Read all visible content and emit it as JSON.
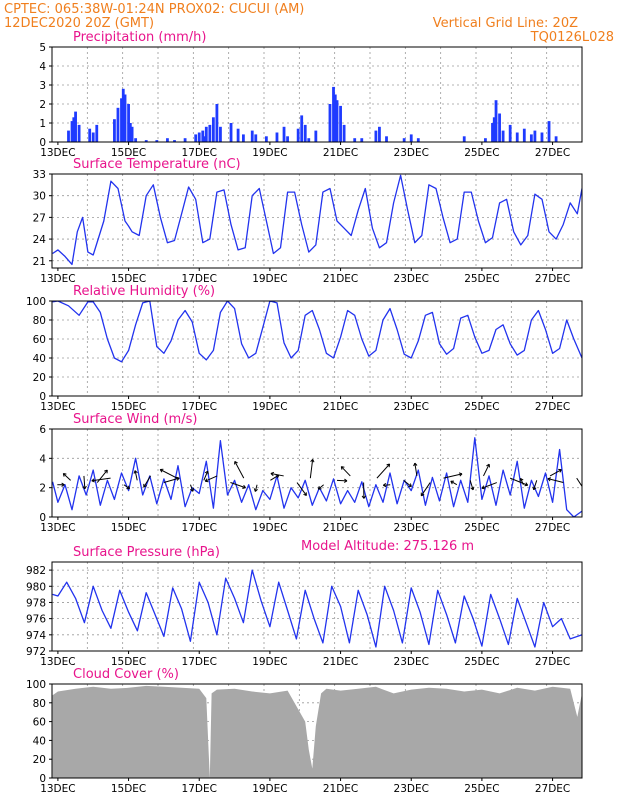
{
  "header": {
    "line1": "CPTEC:   065:38W-01:24N   PROX02: CUCUI (AM)",
    "line2": "12DEC2020 20Z (GMT)",
    "grid_note": "Vertical Grid Line: 20Z",
    "code": "TQ0126L028"
  },
  "colors": {
    "header": "#f07f1e",
    "panel_title": "#e8148c",
    "series": "#2233ee",
    "bars": "#1f3bff",
    "cloud": "#a8a8a8",
    "grid": "#9a9a9a"
  },
  "x_axis": {
    "tick_labels": [
      "13DEC",
      "15DEC",
      "17DEC",
      "19DEC",
      "21DEC",
      "23DEC",
      "25DEC",
      "27DEC"
    ],
    "tick_days": [
      13,
      15,
      17,
      19,
      21,
      23,
      25,
      27
    ],
    "start_day": 12.833,
    "end_day": 27.833,
    "vertical_grid_days": [
      13.833,
      14.833,
      15.833,
      16.833,
      17.833,
      18.833,
      19.833,
      20.833,
      21.833,
      22.833,
      23.833,
      24.833,
      25.833,
      26.833
    ]
  },
  "model_altitude_label": "Model Altitude: 275.126 m",
  "chart_data": [
    {
      "type": "bar",
      "title": "Precipitation (mm/h)",
      "ylim": [
        0,
        5
      ],
      "yticks": [
        0,
        1,
        2,
        3,
        4,
        5
      ],
      "series_color": "#1f3bff",
      "x": [
        13.3,
        13.4,
        13.45,
        13.5,
        13.6,
        13.9,
        14.0,
        14.1,
        14.6,
        14.7,
        14.8,
        14.85,
        14.9,
        15.0,
        15.05,
        15.1,
        15.2,
        15.5,
        15.8,
        16.1,
        16.3,
        16.6,
        16.9,
        17.0,
        17.1,
        17.15,
        17.2,
        17.3,
        17.4,
        17.5,
        17.6,
        17.9,
        18.1,
        18.25,
        18.5,
        18.6,
        18.9,
        19.2,
        19.4,
        19.5,
        19.8,
        19.9,
        20.0,
        20.1,
        20.3,
        20.7,
        20.8,
        20.85,
        20.9,
        21.0,
        21.1,
        21.4,
        21.6,
        22.0,
        22.1,
        22.3,
        22.8,
        23.0,
        23.2,
        24.5,
        25.1,
        25.3,
        25.35,
        25.4,
        25.5,
        25.6,
        25.8,
        26.0,
        26.2,
        26.4,
        26.5,
        26.7,
        26.9,
        27.1
      ],
      "values": [
        0.6,
        1.1,
        1.3,
        1.6,
        0.9,
        0.7,
        0.5,
        0.9,
        1.2,
        1.8,
        2.3,
        2.8,
        2.5,
        2.0,
        1.0,
        0.8,
        0.2,
        0.1,
        0.1,
        0.2,
        0.1,
        0.2,
        0.4,
        0.5,
        0.6,
        0.3,
        0.8,
        0.9,
        1.3,
        2.0,
        0.8,
        1.0,
        0.7,
        0.4,
        0.6,
        0.4,
        0.3,
        0.5,
        0.8,
        0.3,
        0.7,
        1.4,
        0.9,
        0.2,
        0.6,
        2.0,
        2.9,
        2.5,
        2.2,
        1.9,
        0.9,
        0.2,
        0.2,
        0.6,
        0.8,
        0.3,
        0.2,
        0.4,
        0.2,
        0.3,
        0.2,
        1.0,
        1.3,
        2.2,
        1.5,
        0.6,
        0.9,
        0.5,
        0.7,
        0.4,
        0.6,
        0.5,
        1.1,
        0.3
      ]
    },
    {
      "type": "line",
      "title": "Surface Temperature (nC)",
      "ylim": [
        20,
        33
      ],
      "yticks": [
        21,
        24,
        27,
        30,
        33
      ],
      "series_color": "#2233ee",
      "x": [
        12.85,
        13.0,
        13.2,
        13.4,
        13.55,
        13.7,
        13.85,
        14.0,
        14.3,
        14.5,
        14.7,
        14.9,
        15.0,
        15.1,
        15.3,
        15.5,
        15.7,
        15.9,
        16.1,
        16.3,
        16.5,
        16.7,
        16.9,
        17.1,
        17.3,
        17.5,
        17.7,
        17.9,
        18.1,
        18.3,
        18.5,
        18.7,
        18.9,
        19.1,
        19.3,
        19.5,
        19.7,
        19.9,
        20.1,
        20.3,
        20.5,
        20.7,
        20.9,
        21.1,
        21.3,
        21.5,
        21.7,
        21.9,
        22.1,
        22.3,
        22.5,
        22.7,
        22.9,
        23.1,
        23.3,
        23.5,
        23.7,
        23.9,
        24.1,
        24.3,
        24.5,
        24.7,
        24.9,
        25.1,
        25.3,
        25.5,
        25.7,
        25.9,
        26.1,
        26.3,
        26.5,
        26.7,
        26.9,
        27.1,
        27.3,
        27.5,
        27.7,
        27.833
      ],
      "values": [
        22.0,
        22.5,
        21.6,
        20.5,
        25.0,
        27.0,
        22.2,
        21.8,
        26.5,
        32.0,
        31.0,
        26.5,
        25.8,
        25.0,
        24.5,
        30.0,
        31.5,
        27.0,
        23.5,
        23.8,
        27.5,
        31.2,
        29.5,
        23.5,
        24.0,
        30.5,
        30.8,
        26.0,
        22.5,
        22.8,
        30.0,
        31.0,
        26.5,
        22.0,
        22.8,
        30.5,
        30.5,
        26.0,
        22.2,
        23.2,
        30.5,
        31.0,
        26.5,
        25.5,
        24.5,
        28.0,
        31.0,
        25.5,
        22.8,
        23.5,
        29.0,
        32.8,
        28.0,
        23.5,
        24.5,
        31.5,
        31.0,
        27.0,
        23.5,
        24.0,
        30.5,
        30.5,
        26.5,
        23.5,
        24.2,
        29.0,
        29.5,
        25.0,
        23.2,
        24.5,
        30.2,
        29.5,
        25.0,
        24.0,
        26.0,
        29.0,
        27.5,
        31.0
      ]
    },
    {
      "type": "line",
      "title": "Relative Humidity (%)",
      "ylim": [
        0,
        100
      ],
      "yticks": [
        0,
        20,
        40,
        60,
        80,
        100
      ],
      "series_color": "#2233ee",
      "x": [
        12.85,
        13.0,
        13.3,
        13.6,
        13.85,
        14.0,
        14.2,
        14.4,
        14.6,
        14.8,
        15.0,
        15.2,
        15.4,
        15.6,
        15.8,
        16.0,
        16.2,
        16.4,
        16.6,
        16.8,
        17.0,
        17.2,
        17.4,
        17.6,
        17.8,
        18.0,
        18.2,
        18.4,
        18.6,
        18.8,
        19.0,
        19.2,
        19.4,
        19.6,
        19.8,
        20.0,
        20.2,
        20.4,
        20.6,
        20.8,
        21.0,
        21.2,
        21.4,
        21.6,
        21.8,
        22.0,
        22.2,
        22.4,
        22.6,
        22.8,
        23.0,
        23.2,
        23.4,
        23.6,
        23.8,
        24.0,
        24.2,
        24.4,
        24.6,
        24.8,
        25.0,
        25.2,
        25.4,
        25.6,
        25.8,
        26.0,
        26.2,
        26.4,
        26.6,
        26.8,
        27.0,
        27.2,
        27.4,
        27.6,
        27.833
      ],
      "values": [
        99,
        100,
        95,
        85,
        99,
        99,
        88,
        60,
        40,
        36,
        48,
        75,
        98,
        100,
        52,
        45,
        58,
        80,
        90,
        78,
        45,
        38,
        48,
        88,
        100,
        92,
        55,
        40,
        45,
        72,
        100,
        98,
        56,
        40,
        48,
        85,
        90,
        70,
        45,
        40,
        62,
        90,
        85,
        60,
        42,
        48,
        80,
        92,
        70,
        44,
        40,
        58,
        85,
        88,
        55,
        44,
        50,
        82,
        85,
        62,
        45,
        48,
        70,
        75,
        55,
        43,
        48,
        80,
        90,
        70,
        45,
        50,
        80,
        60,
        40
      ]
    },
    {
      "type": "line",
      "title": "Surface Wind (m/s)",
      "ylim": [
        0,
        6
      ],
      "yticks": [
        0,
        2,
        4,
        6
      ],
      "series_color": "#2233ee",
      "x": [
        12.85,
        13.0,
        13.2,
        13.4,
        13.6,
        13.8,
        14.0,
        14.2,
        14.4,
        14.6,
        14.8,
        15.0,
        15.2,
        15.4,
        15.6,
        15.8,
        16.0,
        16.2,
        16.4,
        16.6,
        16.8,
        17.0,
        17.2,
        17.4,
        17.6,
        17.8,
        18.0,
        18.2,
        18.4,
        18.6,
        18.8,
        19.0,
        19.2,
        19.4,
        19.6,
        19.8,
        20.0,
        20.2,
        20.4,
        20.6,
        20.8,
        21.0,
        21.2,
        21.4,
        21.6,
        21.8,
        22.0,
        22.2,
        22.4,
        22.6,
        22.8,
        23.0,
        23.2,
        23.4,
        23.6,
        23.8,
        24.0,
        24.2,
        24.4,
        24.6,
        24.8,
        25.0,
        25.2,
        25.4,
        25.6,
        25.8,
        26.0,
        26.2,
        26.4,
        26.6,
        26.8,
        27.0,
        27.2,
        27.4,
        27.6,
        27.833
      ],
      "values": [
        2.4,
        1.0,
        2.2,
        0.5,
        2.8,
        1.5,
        3.2,
        0.8,
        2.5,
        1.2,
        3.0,
        1.8,
        4.0,
        1.5,
        2.8,
        0.9,
        2.6,
        1.2,
        3.5,
        0.7,
        2.0,
        1.6,
        3.8,
        0.6,
        5.2,
        1.5,
        2.5,
        1.0,
        2.2,
        0.5,
        1.8,
        1.2,
        2.8,
        0.6,
        2.0,
        1.3,
        2.5,
        0.8,
        2.0,
        1.1,
        2.6,
        0.9,
        1.8,
        1.0,
        2.4,
        0.7,
        2.2,
        1.0,
        3.0,
        0.9,
        2.5,
        1.8,
        3.2,
        0.8,
        2.7,
        1.1,
        3.0,
        0.7,
        2.5,
        1.0,
        5.4,
        1.2,
        2.8,
        0.8,
        3.2,
        1.5,
        3.8,
        0.6,
        2.5,
        1.4,
        3.0,
        1.0,
        4.6,
        0.5,
        0.0,
        0.4
      ]
    },
    {
      "type": "line",
      "title": "Surface Pressure (hPa)",
      "ylim": [
        972,
        983
      ],
      "yticks": [
        972,
        974,
        976,
        978,
        980,
        982
      ],
      "series_color": "#2233ee",
      "x": [
        12.85,
        13.0,
        13.25,
        13.5,
        13.75,
        14.0,
        14.25,
        14.5,
        14.75,
        15.0,
        15.25,
        15.5,
        15.75,
        16.0,
        16.25,
        16.5,
        16.75,
        17.0,
        17.25,
        17.5,
        17.75,
        18.0,
        18.25,
        18.5,
        18.75,
        19.0,
        19.25,
        19.5,
        19.75,
        20.0,
        20.25,
        20.5,
        20.75,
        21.0,
        21.25,
        21.5,
        21.75,
        22.0,
        22.25,
        22.5,
        22.75,
        23.0,
        23.25,
        23.5,
        23.75,
        24.0,
        24.25,
        24.5,
        24.75,
        25.0,
        25.25,
        25.5,
        25.75,
        26.0,
        26.25,
        26.5,
        26.75,
        27.0,
        27.25,
        27.5,
        27.833
      ],
      "values": [
        979.0,
        978.8,
        980.5,
        978.5,
        975.5,
        980.0,
        977.0,
        974.8,
        979.5,
        976.8,
        974.5,
        979.2,
        976.5,
        973.8,
        979.8,
        977.2,
        973.2,
        980.5,
        978.0,
        974.0,
        981.0,
        978.5,
        975.5,
        982.0,
        978.2,
        975.0,
        980.5,
        977.0,
        973.5,
        979.5,
        976.0,
        973.0,
        980.0,
        977.5,
        973.0,
        979.5,
        976.5,
        972.5,
        980.0,
        977.0,
        973.0,
        979.8,
        976.8,
        972.8,
        979.5,
        976.5,
        973.0,
        978.8,
        976.0,
        972.6,
        979.0,
        976.0,
        972.8,
        978.5,
        975.5,
        972.5,
        978.0,
        975.0,
        976.0,
        973.5,
        974.0
      ]
    },
    {
      "type": "area",
      "title": "Cloud Cover (%)",
      "ylim": [
        0,
        100
      ],
      "yticks": [
        0,
        20,
        40,
        60,
        80,
        100
      ],
      "series_color": "#a8a8a8",
      "x": [
        12.85,
        13.0,
        13.5,
        14.0,
        14.5,
        15.0,
        15.5,
        16.0,
        16.5,
        17.0,
        17.2,
        17.3,
        17.35,
        17.5,
        18.0,
        18.5,
        19.0,
        19.5,
        20.0,
        20.1,
        20.2,
        20.3,
        20.45,
        20.6,
        21.0,
        21.5,
        22.0,
        22.5,
        23.0,
        23.5,
        24.0,
        24.5,
        25.0,
        25.5,
        26.0,
        26.5,
        27.0,
        27.5,
        27.7,
        27.833
      ],
      "values": [
        88,
        92,
        95,
        97,
        95,
        96,
        98,
        97,
        96,
        95,
        85,
        0,
        90,
        94,
        95,
        92,
        90,
        93,
        60,
        30,
        10,
        55,
        90,
        95,
        93,
        95,
        97,
        90,
        94,
        96,
        95,
        92,
        94,
        90,
        96,
        93,
        97,
        95,
        65,
        90
      ]
    }
  ],
  "wind_arrow_count": 40
}
